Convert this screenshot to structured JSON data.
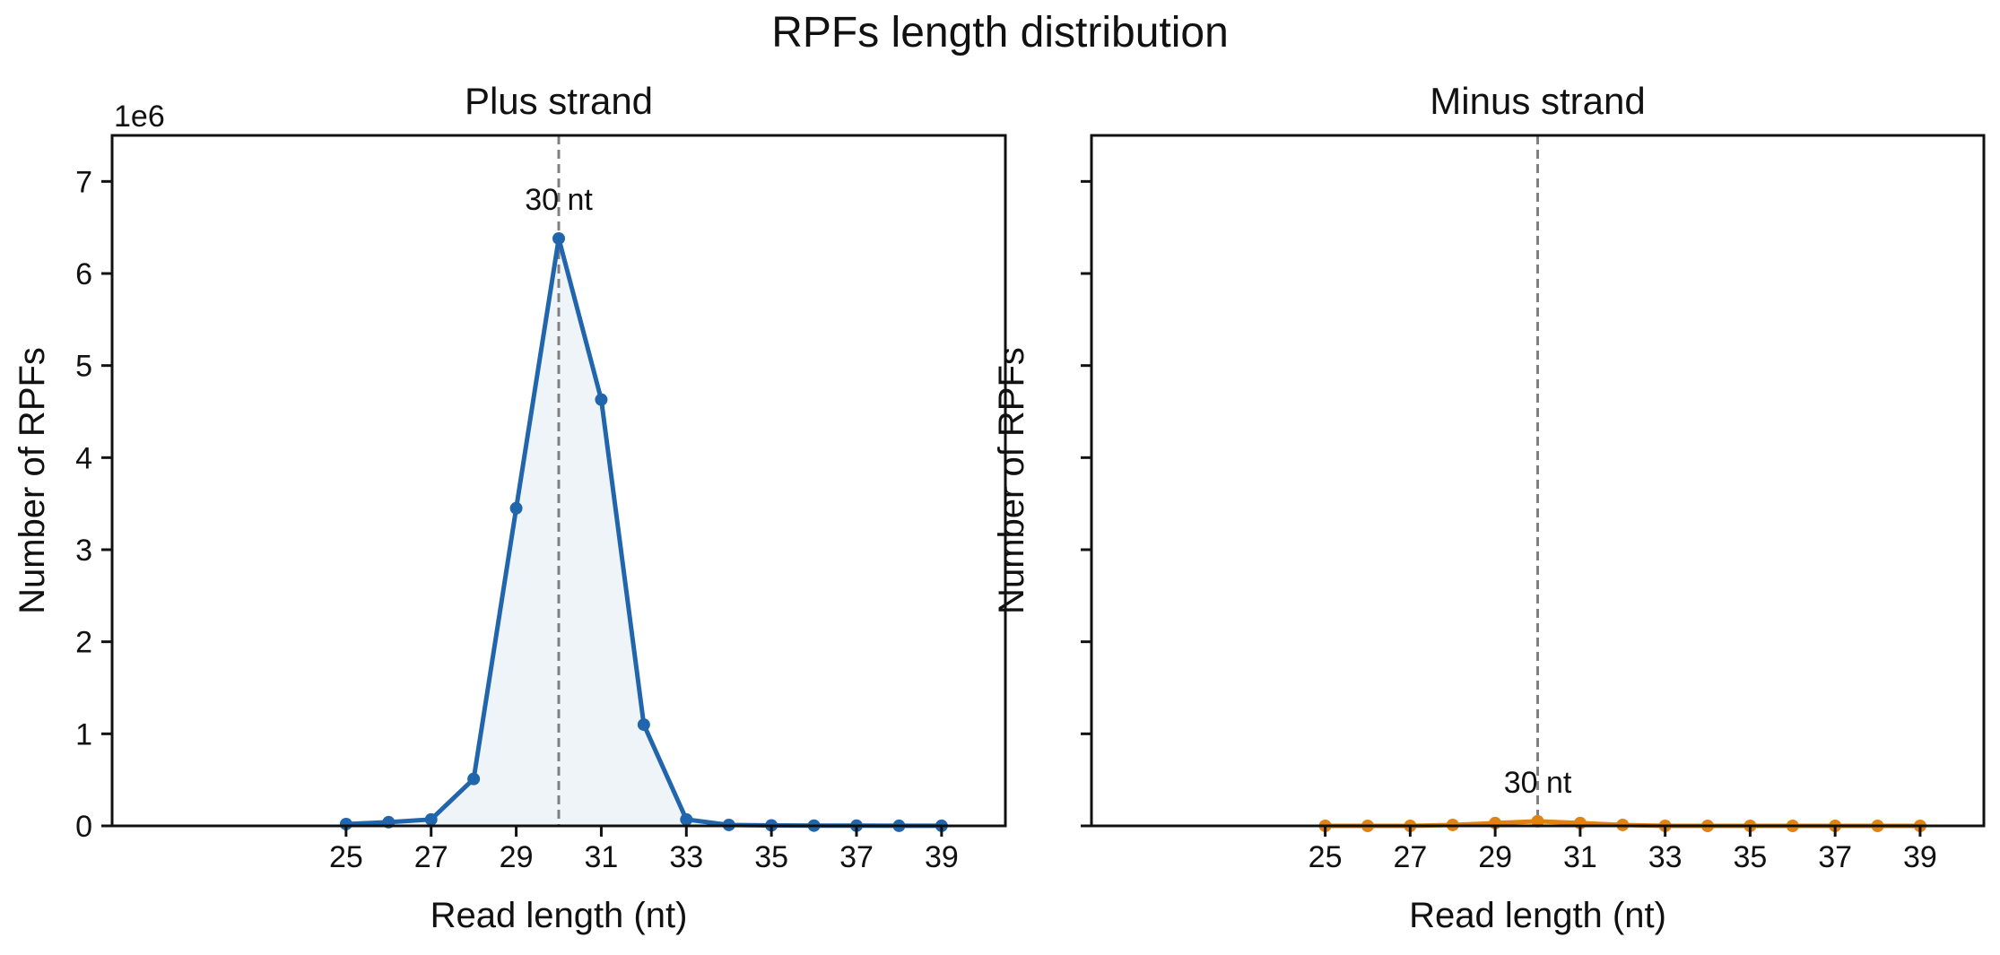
{
  "figure": {
    "suptitle": "RPFs length distribution"
  },
  "chart_data": [
    {
      "type": "line",
      "title": "Plus strand",
      "xlabel": "Read length (nt)",
      "ylabel": "Number of RPFs",
      "y_scale_label": "1e6",
      "color": "#2166ac",
      "fill": true,
      "x": [
        25,
        26,
        27,
        28,
        29,
        30,
        31,
        32,
        33,
        34,
        35,
        36,
        37,
        38,
        39
      ],
      "values": [
        0.02,
        0.04,
        0.07,
        0.51,
        3.45,
        6.38,
        4.63,
        1.1,
        0.07,
        0.01,
        0.005,
        0.003,
        0.002,
        0.001,
        0.001
      ],
      "xlim": [
        19.5,
        40.5
      ],
      "ylim": [
        0,
        7.5
      ],
      "xticks": [
        "25",
        "27",
        "29",
        "31",
        "33",
        "35",
        "37",
        "39"
      ],
      "yticks": [
        "0",
        "1",
        "2",
        "3",
        "4",
        "5",
        "6",
        "7"
      ],
      "peak_x": 30,
      "peak_label": "30 nt"
    },
    {
      "type": "line",
      "title": "Minus strand",
      "xlabel": "Read length (nt)",
      "ylabel": "Number of RPFs",
      "color": "#e08214",
      "fill": true,
      "x": [
        25,
        26,
        27,
        28,
        29,
        30,
        31,
        32,
        33,
        34,
        35,
        36,
        37,
        38,
        39
      ],
      "values": [
        0.0,
        0.0,
        0.0,
        0.01,
        0.03,
        0.05,
        0.03,
        0.01,
        0.0,
        0.0,
        0.0,
        0.0,
        0.0,
        0.0,
        0.0
      ],
      "xlim": [
        19.5,
        40.5
      ],
      "ylim": [
        0,
        7.5
      ],
      "xticks": [
        "25",
        "27",
        "29",
        "31",
        "33",
        "35",
        "37",
        "39"
      ],
      "yticks": [
        "",
        "",
        "",
        "",
        "",
        "",
        "",
        ""
      ],
      "peak_x": 30,
      "peak_label": "30 nt"
    }
  ]
}
